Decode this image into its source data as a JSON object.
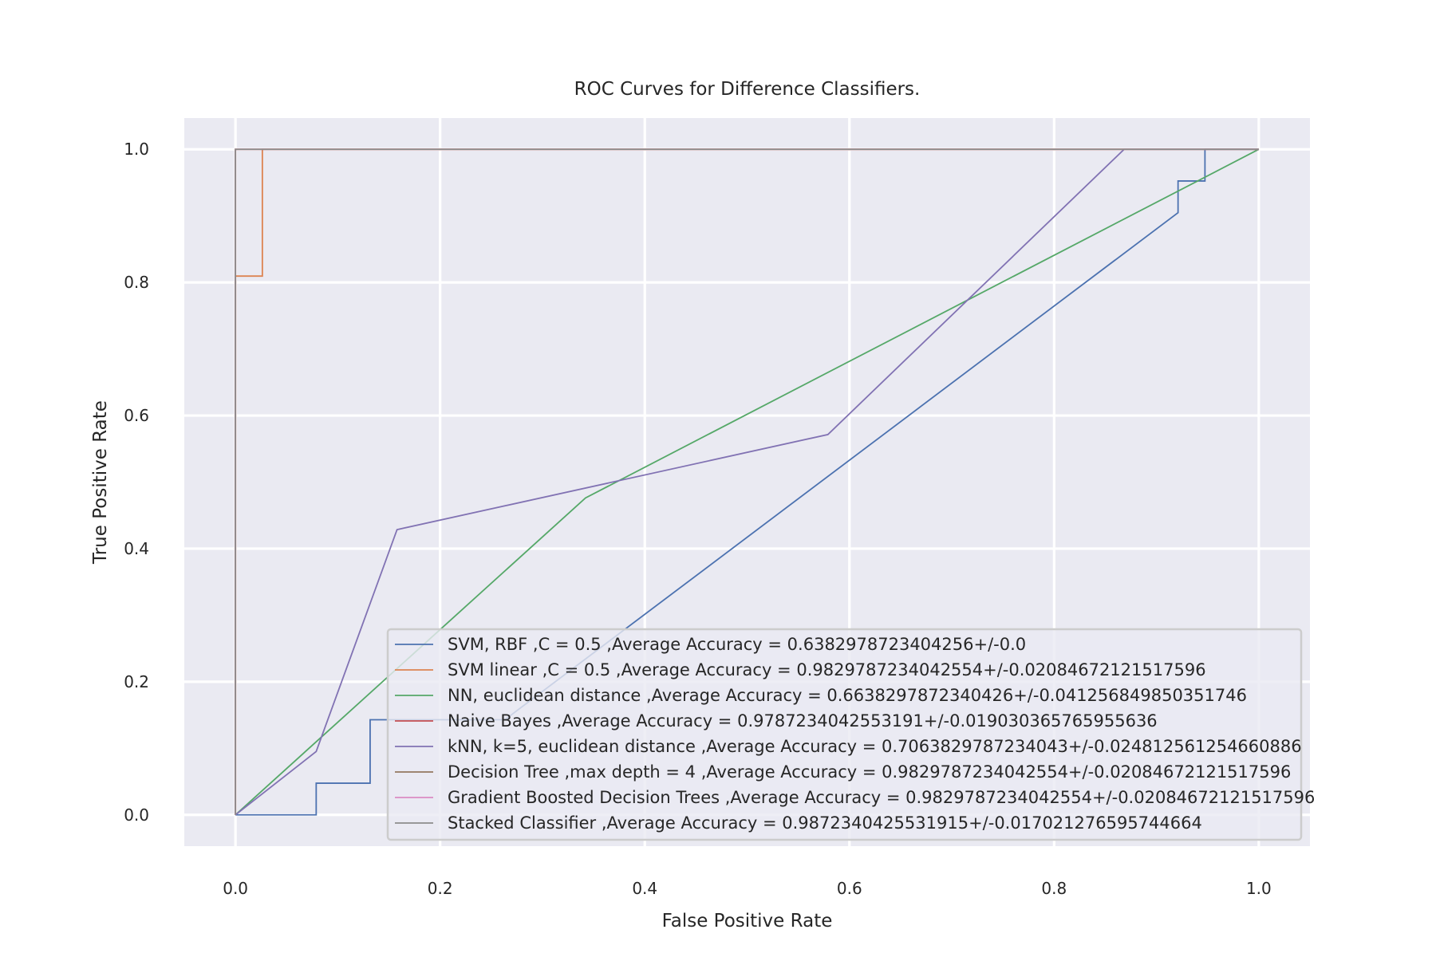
{
  "chart_data": {
    "type": "line",
    "title": "ROC Curves for Difference Classifiers.",
    "xlabel": "False Positive Rate",
    "ylabel": "True Positive Rate",
    "xlim": [
      -0.05,
      1.05
    ],
    "ylim": [
      -0.047,
      1.047
    ],
    "xticks": [
      0.0,
      0.2,
      0.4,
      0.6,
      0.8,
      1.0
    ],
    "xtick_labels": [
      "0.0",
      "0.2",
      "0.4",
      "0.6",
      "0.8",
      "1.0"
    ],
    "yticks": [
      0.0,
      0.2,
      0.4,
      0.6,
      0.8,
      1.0
    ],
    "ytick_labels": [
      "0.0",
      "0.2",
      "0.4",
      "0.6",
      "0.8",
      "1.0"
    ],
    "grid": true,
    "legend_position": "lower right",
    "background": "#eaeaf2",
    "series": [
      {
        "name": "SVM, RBF ,C = 0.5 ,Average Accuracy = 0.6382978723404256+/-0.0",
        "color": "#4c72b0",
        "x": [
          0.0,
          0.0789,
          0.0789,
          0.1316,
          0.1316,
          0.2632,
          0.9211,
          0.9211,
          0.9474,
          0.9474,
          1.0
        ],
        "y": [
          0.0,
          0.0,
          0.0476,
          0.0476,
          0.1429,
          0.1429,
          0.9048,
          0.9524,
          0.9524,
          1.0,
          1.0
        ]
      },
      {
        "name": "SVM linear ,C = 0.5 ,Average Accuracy = 0.9829787234042554+/-0.02084672121517596",
        "color": "#dd8452",
        "x": [
          0.0,
          0.0,
          0.0263,
          0.0263,
          1.0
        ],
        "y": [
          0.0,
          0.8095,
          0.8095,
          1.0,
          1.0
        ]
      },
      {
        "name": "NN, euclidean distance ,Average Accuracy = 0.6638297872340426+/-0.041256849850351746",
        "color": "#55a868",
        "x": [
          0.0,
          0.3421,
          1.0
        ],
        "y": [
          0.0,
          0.4762,
          1.0
        ]
      },
      {
        "name": "Naive Bayes ,Average Accuracy = 0.9787234042553191+/-0.019030365765955636",
        "color": "#c44e52",
        "x": [
          0.0,
          0.0,
          1.0
        ],
        "y": [
          0.0,
          1.0,
          1.0
        ]
      },
      {
        "name": "kNN, k=5, euclidean distance ,Average Accuracy = 0.7063829787234043+/-0.024812561254660886",
        "color": "#8172b3",
        "x": [
          0.0,
          0.0789,
          0.1579,
          0.5789,
          0.8684,
          1.0
        ],
        "y": [
          0.0,
          0.0952,
          0.4286,
          0.5714,
          1.0,
          1.0
        ]
      },
      {
        "name": "Decision Tree ,max depth = 4 ,Average Accuracy = 0.9829787234042554+/-0.02084672121517596",
        "color": "#937860",
        "x": [
          0.0,
          0.0,
          1.0
        ],
        "y": [
          0.0,
          1.0,
          1.0
        ]
      },
      {
        "name": "Gradient Boosted Decision Trees ,Average Accuracy = 0.9829787234042554+/-0.02084672121517596",
        "color": "#da8bc3",
        "x": [
          0.0,
          0.0,
          1.0
        ],
        "y": [
          0.0,
          1.0,
          1.0
        ]
      },
      {
        "name": "Stacked Classifier ,Average Accuracy = 0.9872340425531915+/-0.017021276595744664",
        "color": "#8c8c8c",
        "x": [
          0.0,
          0.0,
          1.0
        ],
        "y": [
          0.0,
          1.0,
          1.0
        ]
      }
    ]
  }
}
